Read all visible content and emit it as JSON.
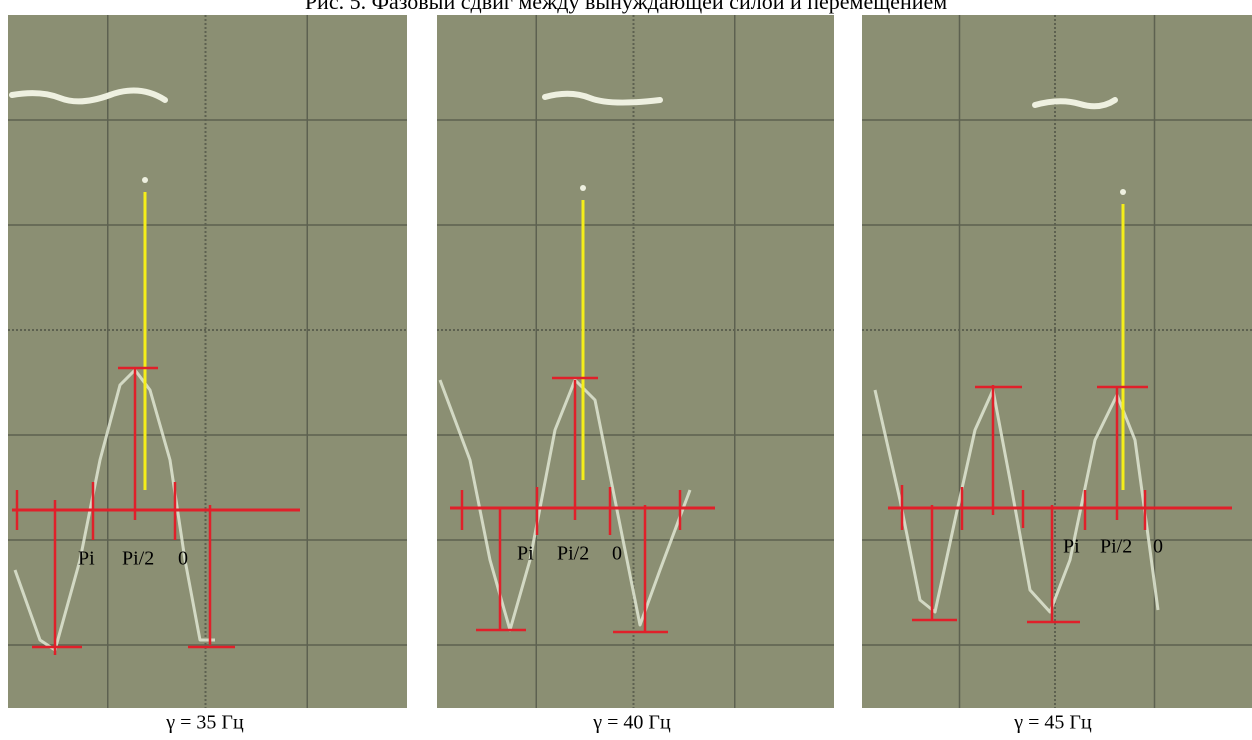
{
  "figure": {
    "title": "Рис. 5. Фазовый сдвиг между вынуждающей силой и перемещением",
    "panels": [
      {
        "caption": "γ = 35 Гц",
        "labels": [
          "Pi",
          "Pi/2",
          "0"
        ]
      },
      {
        "caption": "γ = 40 Гц",
        "labels": [
          "Pi",
          "Pi/2",
          "0"
        ]
      },
      {
        "caption": "γ = 45 Гц",
        "labels": [
          "Pi",
          "Pi/2",
          "0"
        ]
      }
    ]
  }
}
